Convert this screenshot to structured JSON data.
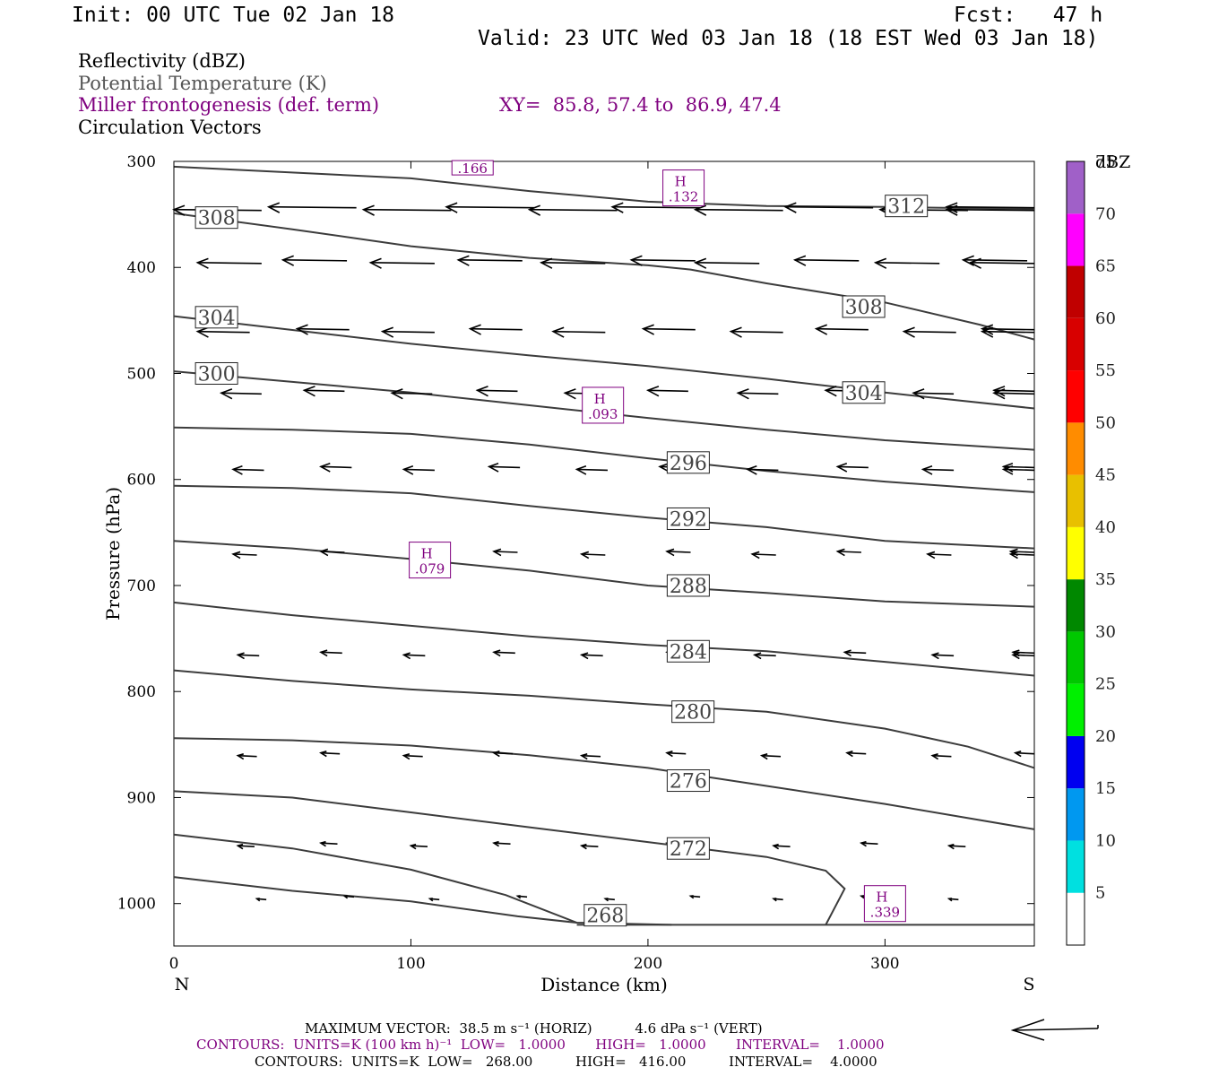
{
  "header": {
    "init": "Init: 00 UTC Tue 02 Jan 18",
    "fcst": "Fcst:   47 h",
    "valid": "Valid: 23 UTC Wed 03 Jan 18 (18 EST Wed 03 Jan 18)"
  },
  "legend": {
    "reflectivity": "Reflectivity (dBZ)",
    "theta": "Potential Temperature (K)",
    "miller": "Miller frontogenesis (def. term)",
    "xy": "XY=  85.8, 57.4 to  86.9, 47.4",
    "vectors": "Circulation Vectors"
  },
  "chart_data": {
    "type": "cross-section",
    "xlabel": "Distance (km)",
    "ylabel": "Pressure (hPa)",
    "x_ticks": [
      "0",
      "100",
      "200",
      "300"
    ],
    "y_ticks": [
      "300",
      "400",
      "500",
      "600",
      "700",
      "800",
      "900",
      "1000"
    ],
    "xlim": [
      0,
      363
    ],
    "ylim": [
      1040,
      300
    ],
    "endpoints": {
      "left": "N",
      "right": "S"
    },
    "ground_pressure": 1020,
    "theta_contours": [
      {
        "label": "312",
        "points": [
          [
            0,
            305
          ],
          [
            100,
            316
          ],
          [
            150,
            328
          ],
          [
            200,
            338
          ],
          [
            250,
            342
          ],
          [
            300,
            343
          ],
          [
            363,
            345
          ]
        ],
        "label_at": [
          309,
          342
        ]
      },
      {
        "label": "308",
        "points": [
          [
            0,
            349
          ],
          [
            50,
            364
          ],
          [
            100,
            380
          ],
          [
            150,
            391
          ],
          [
            200,
            398
          ],
          [
            218,
            402
          ],
          [
            250,
            415
          ],
          [
            300,
            433
          ],
          [
            340,
            454
          ],
          [
            363,
            468
          ]
        ],
        "label_at": [
          291,
          437
        ],
        "extra_label_at": [
          18,
          353
        ]
      },
      {
        "label": "304",
        "points": [
          [
            0,
            446
          ],
          [
            50,
            459
          ],
          [
            100,
            472
          ],
          [
            150,
            483
          ],
          [
            200,
            493
          ],
          [
            250,
            505
          ],
          [
            300,
            518
          ],
          [
            363,
            533
          ]
        ],
        "label_at": [
          291,
          518
        ],
        "extra_label_at": [
          18,
          447
        ]
      },
      {
        "label": "300",
        "points": [
          [
            0,
            498
          ],
          [
            50,
            508
          ],
          [
            100,
            518
          ],
          [
            150,
            530
          ],
          [
            200,
            542
          ],
          [
            250,
            553
          ],
          [
            300,
            563
          ],
          [
            363,
            572
          ]
        ],
        "label_at": [
          18,
          500
        ]
      },
      {
        "label": "296",
        "points": [
          [
            0,
            551
          ],
          [
            50,
            553
          ],
          [
            100,
            557
          ],
          [
            150,
            567
          ],
          [
            200,
            580
          ],
          [
            250,
            592
          ],
          [
            300,
            602
          ],
          [
            363,
            612
          ]
        ],
        "label_at": [
          217,
          584
        ]
      },
      {
        "label": "292",
        "points": [
          [
            0,
            606
          ],
          [
            50,
            608
          ],
          [
            100,
            613
          ],
          [
            150,
            625
          ],
          [
            200,
            636
          ],
          [
            250,
            645
          ],
          [
            300,
            658
          ],
          [
            363,
            665
          ]
        ],
        "label_at": [
          217,
          637
        ]
      },
      {
        "label": "288",
        "points": [
          [
            0,
            658
          ],
          [
            50,
            665
          ],
          [
            100,
            675
          ],
          [
            150,
            686
          ],
          [
            200,
            700
          ],
          [
            250,
            707
          ],
          [
            300,
            715
          ],
          [
            363,
            720
          ]
        ],
        "label_at": [
          217,
          700
        ]
      },
      {
        "label": "284",
        "points": [
          [
            0,
            716
          ],
          [
            50,
            728
          ],
          [
            100,
            738
          ],
          [
            150,
            748
          ],
          [
            200,
            756
          ],
          [
            250,
            762
          ],
          [
            300,
            772
          ],
          [
            363,
            785
          ]
        ],
        "label_at": [
          217,
          762
        ]
      },
      {
        "label": "280",
        "points": [
          [
            0,
            780
          ],
          [
            50,
            790
          ],
          [
            100,
            798
          ],
          [
            150,
            804
          ],
          [
            200,
            812
          ],
          [
            250,
            819
          ],
          [
            300,
            835
          ],
          [
            335,
            852
          ],
          [
            363,
            872
          ]
        ],
        "label_at": [
          219,
          819
        ]
      },
      {
        "label": "276",
        "points": [
          [
            0,
            844
          ],
          [
            50,
            846
          ],
          [
            100,
            851
          ],
          [
            150,
            860
          ],
          [
            200,
            872
          ],
          [
            250,
            889
          ],
          [
            300,
            906
          ],
          [
            363,
            930
          ]
        ],
        "label_at": [
          217,
          884
        ]
      },
      {
        "label": "272",
        "points": [
          [
            0,
            894
          ],
          [
            50,
            900
          ],
          [
            100,
            914
          ],
          [
            150,
            928
          ],
          [
            200,
            942
          ],
          [
            250,
            956
          ],
          [
            275,
            969
          ],
          [
            283,
            986
          ],
          [
            275,
            1020
          ]
        ],
        "label_at": [
          217,
          948
        ]
      },
      {
        "label": "268",
        "points": [
          [
            0,
            935
          ],
          [
            50,
            948
          ],
          [
            100,
            968
          ],
          [
            140,
            992
          ],
          [
            170,
            1018
          ],
          [
            210,
            1020
          ]
        ],
        "label_at": [
          182,
          1011
        ]
      },
      {
        "label": "",
        "points": [
          [
            0,
            975
          ],
          [
            50,
            988
          ],
          [
            100,
            998
          ],
          [
            145,
            1012
          ],
          [
            170,
            1018
          ]
        ]
      }
    ],
    "frontogenesis_maxima": [
      {
        "label": "H",
        "value": ".166",
        "x": 126,
        "p": 306,
        "h_hidden": true
      },
      {
        "label": "H",
        "value": ".132",
        "x": 215,
        "p": 325
      },
      {
        "label": "H",
        "value": ".093",
        "x": 181,
        "p": 530
      },
      {
        "label": "H",
        "value": ".079",
        "x": 108,
        "p": 676
      },
      {
        "label": "H",
        "value": ".339",
        "x": 300,
        "p": 1000
      }
    ],
    "vector_rows": [
      {
        "p": 345,
        "u": -37,
        "xs": [
          0,
          40,
          80,
          115,
          150,
          185,
          220,
          258,
          298,
          333,
          363
        ]
      },
      {
        "p": 395,
        "u": -27,
        "xs": [
          10,
          46,
          83,
          120,
          155,
          193,
          220,
          262,
          296,
          333,
          363
        ]
      },
      {
        "p": 460,
        "u": -22,
        "xs": [
          10,
          52,
          88,
          125,
          160,
          198,
          235,
          271,
          308,
          344,
          363
        ]
      },
      {
        "p": 518,
        "u": -17,
        "xs": [
          20,
          55,
          92,
          128,
          165,
          200,
          238,
          275,
          312,
          348,
          363
        ]
      },
      {
        "p": 590,
        "u": -13,
        "xs": [
          25,
          62,
          97,
          133,
          170,
          205,
          242,
          280,
          316,
          351,
          363
        ]
      },
      {
        "p": 670,
        "u": -10,
        "xs": [
          25,
          62,
          100,
          135,
          172,
          208,
          244,
          280,
          318,
          354,
          363
        ]
      },
      {
        "p": 765,
        "u": -9,
        "xs": [
          27,
          62,
          97,
          135,
          172,
          208,
          245,
          283,
          320,
          357,
          363
        ]
      },
      {
        "p": 860,
        "u": -8,
        "xs": [
          27,
          62,
          97,
          135,
          172,
          208,
          248,
          284,
          320,
          357
        ]
      },
      {
        "p": 945,
        "u": -7,
        "xs": [
          27,
          62,
          100,
          135,
          172,
          208,
          253,
          290,
          327
        ]
      },
      {
        "p": 995,
        "u": -4,
        "xs": [
          35,
          72,
          108,
          145,
          182,
          218,
          253,
          290,
          327
        ]
      }
    ]
  },
  "colorbar": {
    "unit": "dBZ",
    "labels": [
      "5",
      "10",
      "15",
      "20",
      "25",
      "30",
      "35",
      "40",
      "45",
      "50",
      "55",
      "60",
      "65",
      "70",
      "75"
    ],
    "colors": [
      "#00e0e0",
      "#0098f0",
      "#0000f0",
      "#00f000",
      "#00c800",
      "#008800",
      "#ffff00",
      "#e8c000",
      "#ff8c00",
      "#ff0000",
      "#d80000",
      "#c00000",
      "#ff00ff",
      "#a060c8"
    ]
  },
  "footer": {
    "max_vector": "MAXIMUM VECTOR:  38.5 m s⁻¹ (HORIZ)          4.6 dPa s⁻¹ (VERT)",
    "contours1": "CONTOURS:  UNITS=K (100 km h)⁻¹  LOW=   1.0000       HIGH=   1.0000       INTERVAL=    1.0000",
    "contours2": "CONTOURS:  UNITS=K  LOW=   268.00          HIGH=   416.00          INTERVAL=    4.0000"
  },
  "colors": {
    "purple": "#7f007f",
    "contour": "#3c3c3c",
    "gray_text": "#555555"
  }
}
